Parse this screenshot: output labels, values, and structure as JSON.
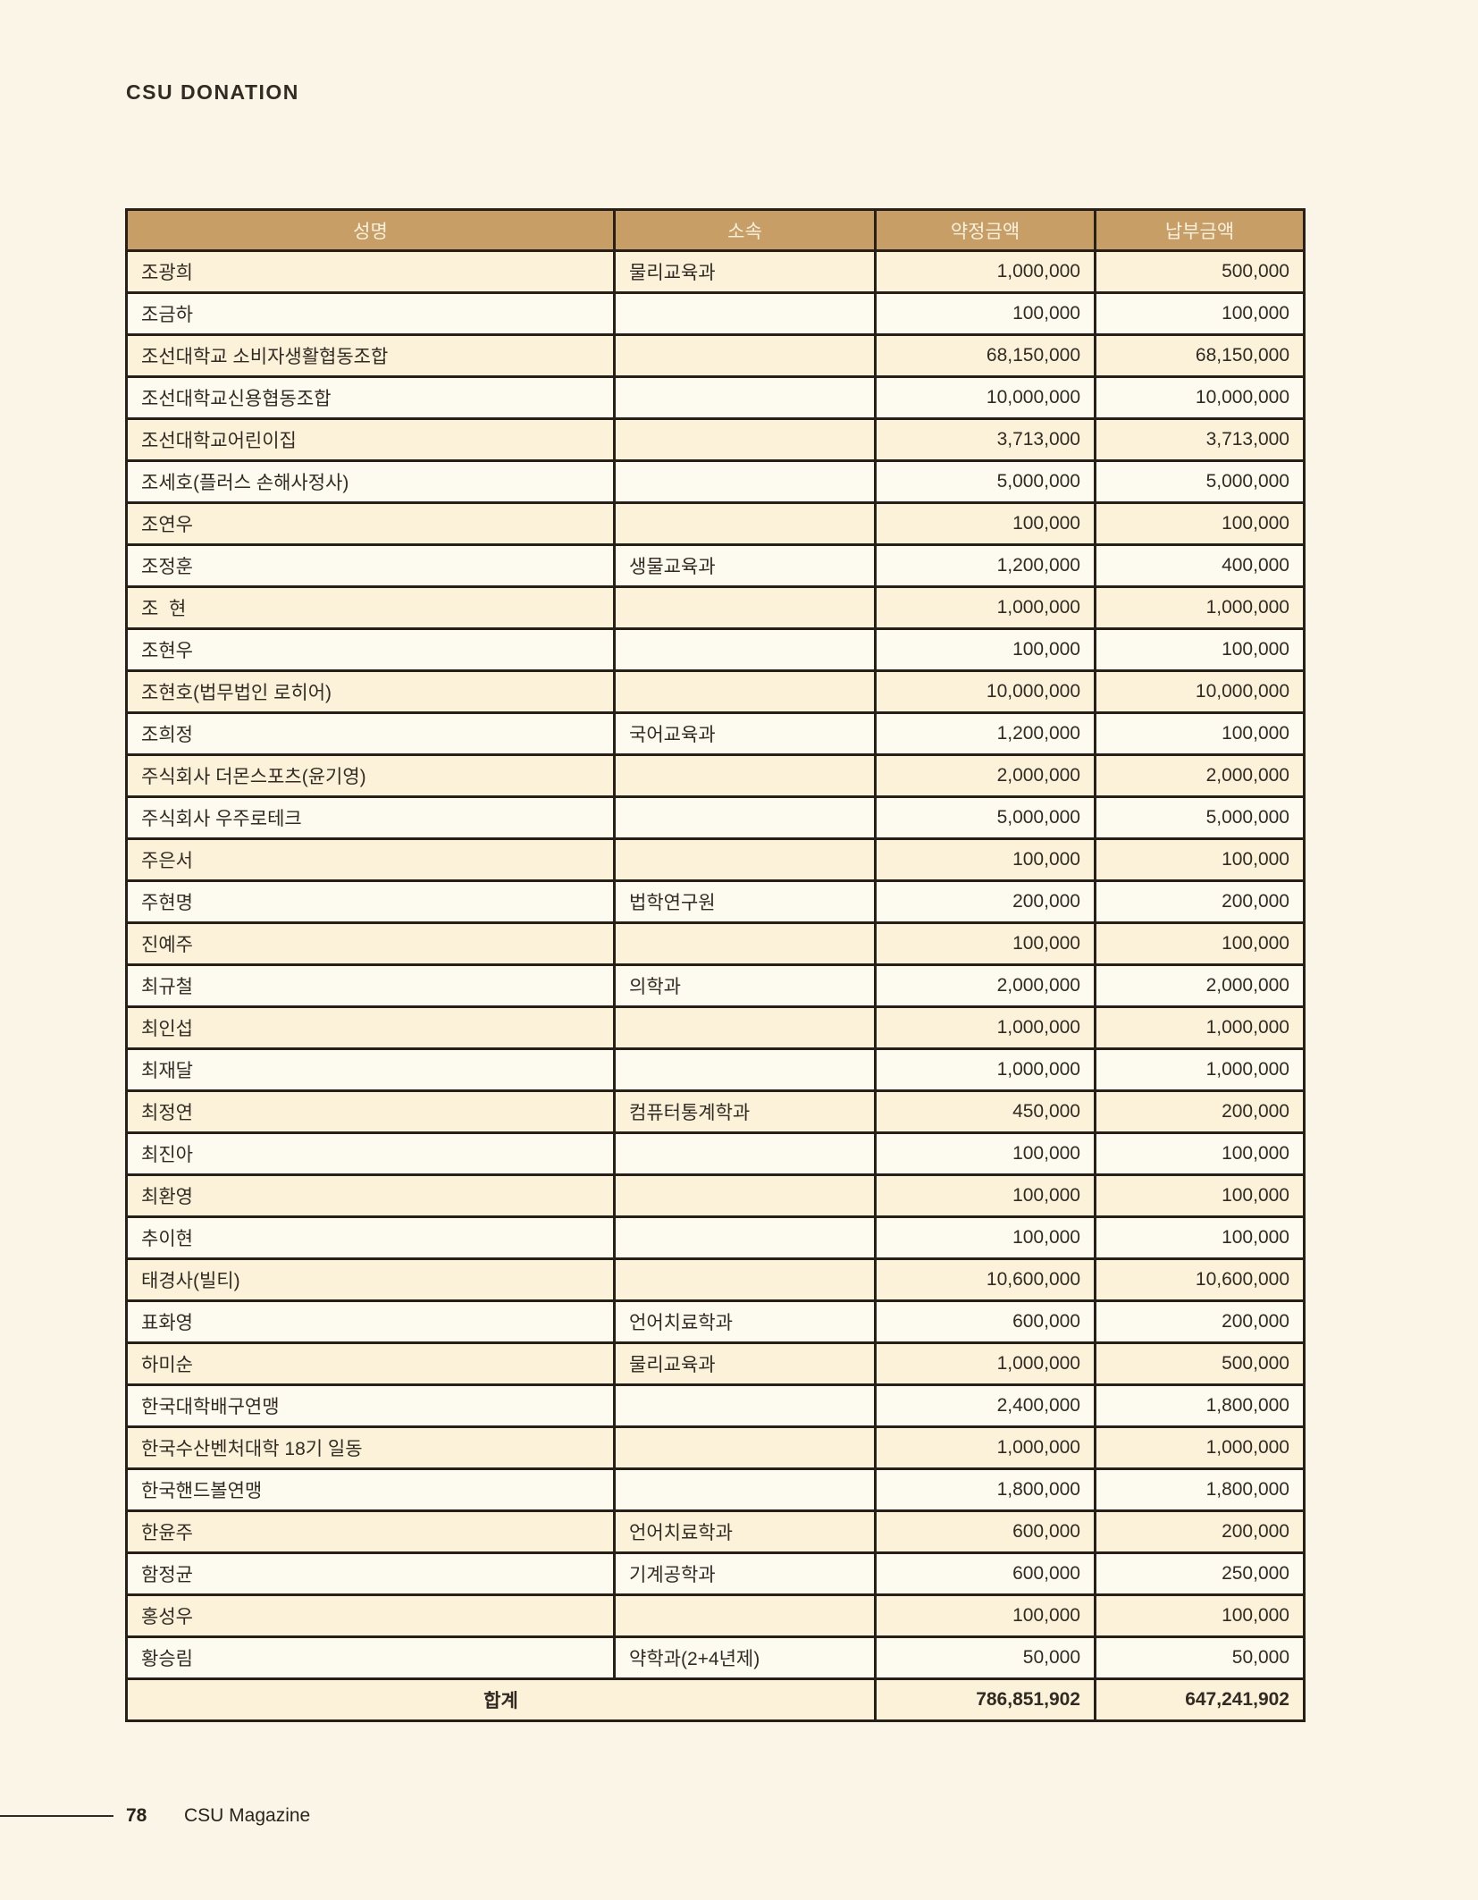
{
  "page": {
    "title": "CSU DONATION",
    "page_number": "78",
    "magazine_name": "CSU Magazine"
  },
  "colors": {
    "page_background": "#faf5e6",
    "header_background": "#c69e66",
    "header_text": "#f8f1de",
    "row_odd_background": "#fbf2d9",
    "row_even_background": "#fdfaf0",
    "border": "#262019",
    "text": "#332b23"
  },
  "table": {
    "columns": [
      "성명",
      "소속",
      "약정금액",
      "납부금액"
    ],
    "rows": [
      {
        "name": "조광희",
        "affiliation": "물리교육과",
        "pledged": "1,000,000",
        "paid": "500,000"
      },
      {
        "name": "조금하",
        "affiliation": "",
        "pledged": "100,000",
        "paid": "100,000"
      },
      {
        "name": "조선대학교 소비자생활협동조합",
        "affiliation": "",
        "pledged": "68,150,000",
        "paid": "68,150,000"
      },
      {
        "name": "조선대학교신용협동조합",
        "affiliation": "",
        "pledged": "10,000,000",
        "paid": "10,000,000"
      },
      {
        "name": "조선대학교어린이집",
        "affiliation": "",
        "pledged": "3,713,000",
        "paid": "3,713,000"
      },
      {
        "name": "조세호(플러스 손해사정사)",
        "affiliation": "",
        "pledged": "5,000,000",
        "paid": "5,000,000"
      },
      {
        "name": "조연우",
        "affiliation": "",
        "pledged": "100,000",
        "paid": "100,000"
      },
      {
        "name": "조정훈",
        "affiliation": "생물교육과",
        "pledged": "1,200,000",
        "paid": "400,000"
      },
      {
        "name": "조  현",
        "affiliation": "",
        "pledged": "1,000,000",
        "paid": "1,000,000"
      },
      {
        "name": "조현우",
        "affiliation": "",
        "pledged": "100,000",
        "paid": "100,000"
      },
      {
        "name": "조현호(법무법인 로히어)",
        "affiliation": "",
        "pledged": "10,000,000",
        "paid": "10,000,000"
      },
      {
        "name": "조희정",
        "affiliation": "국어교육과",
        "pledged": "1,200,000",
        "paid": "100,000"
      },
      {
        "name": "주식회사 더몬스포츠(윤기영)",
        "affiliation": "",
        "pledged": "2,000,000",
        "paid": "2,000,000"
      },
      {
        "name": "주식회사 우주로테크",
        "affiliation": "",
        "pledged": "5,000,000",
        "paid": "5,000,000"
      },
      {
        "name": "주은서",
        "affiliation": "",
        "pledged": "100,000",
        "paid": "100,000"
      },
      {
        "name": "주현명",
        "affiliation": "법학연구원",
        "pledged": "200,000",
        "paid": "200,000"
      },
      {
        "name": "진예주",
        "affiliation": "",
        "pledged": "100,000",
        "paid": "100,000"
      },
      {
        "name": "최규철",
        "affiliation": "의학과",
        "pledged": "2,000,000",
        "paid": "2,000,000"
      },
      {
        "name": "최인섭",
        "affiliation": "",
        "pledged": "1,000,000",
        "paid": "1,000,000"
      },
      {
        "name": "최재달",
        "affiliation": "",
        "pledged": "1,000,000",
        "paid": "1,000,000"
      },
      {
        "name": "최정연",
        "affiliation": "컴퓨터통계학과",
        "pledged": "450,000",
        "paid": "200,000"
      },
      {
        "name": "최진아",
        "affiliation": "",
        "pledged": "100,000",
        "paid": "100,000"
      },
      {
        "name": "최환영",
        "affiliation": "",
        "pledged": "100,000",
        "paid": "100,000"
      },
      {
        "name": "추이현",
        "affiliation": "",
        "pledged": "100,000",
        "paid": "100,000"
      },
      {
        "name": "태경사(빌티)",
        "affiliation": "",
        "pledged": "10,600,000",
        "paid": "10,600,000"
      },
      {
        "name": "표화영",
        "affiliation": "언어치료학과",
        "pledged": "600,000",
        "paid": "200,000"
      },
      {
        "name": "하미순",
        "affiliation": "물리교육과",
        "pledged": "1,000,000",
        "paid": "500,000"
      },
      {
        "name": "한국대학배구연맹",
        "affiliation": "",
        "pledged": "2,400,000",
        "paid": "1,800,000"
      },
      {
        "name": "한국수산벤처대학 18기 일동",
        "affiliation": "",
        "pledged": "1,000,000",
        "paid": "1,000,000"
      },
      {
        "name": "한국핸드볼연맹",
        "affiliation": "",
        "pledged": "1,800,000",
        "paid": "1,800,000"
      },
      {
        "name": "한윤주",
        "affiliation": "언어치료학과",
        "pledged": "600,000",
        "paid": "200,000"
      },
      {
        "name": "함정균",
        "affiliation": "기계공학과",
        "pledged": "600,000",
        "paid": "250,000"
      },
      {
        "name": "홍성우",
        "affiliation": "",
        "pledged": "100,000",
        "paid": "100,000"
      },
      {
        "name": "황승림",
        "affiliation": "약학과(2+4년제)",
        "pledged": "50,000",
        "paid": "50,000"
      }
    ],
    "total": {
      "label": "합계",
      "pledged": "786,851,902",
      "paid": "647,241,902"
    }
  }
}
